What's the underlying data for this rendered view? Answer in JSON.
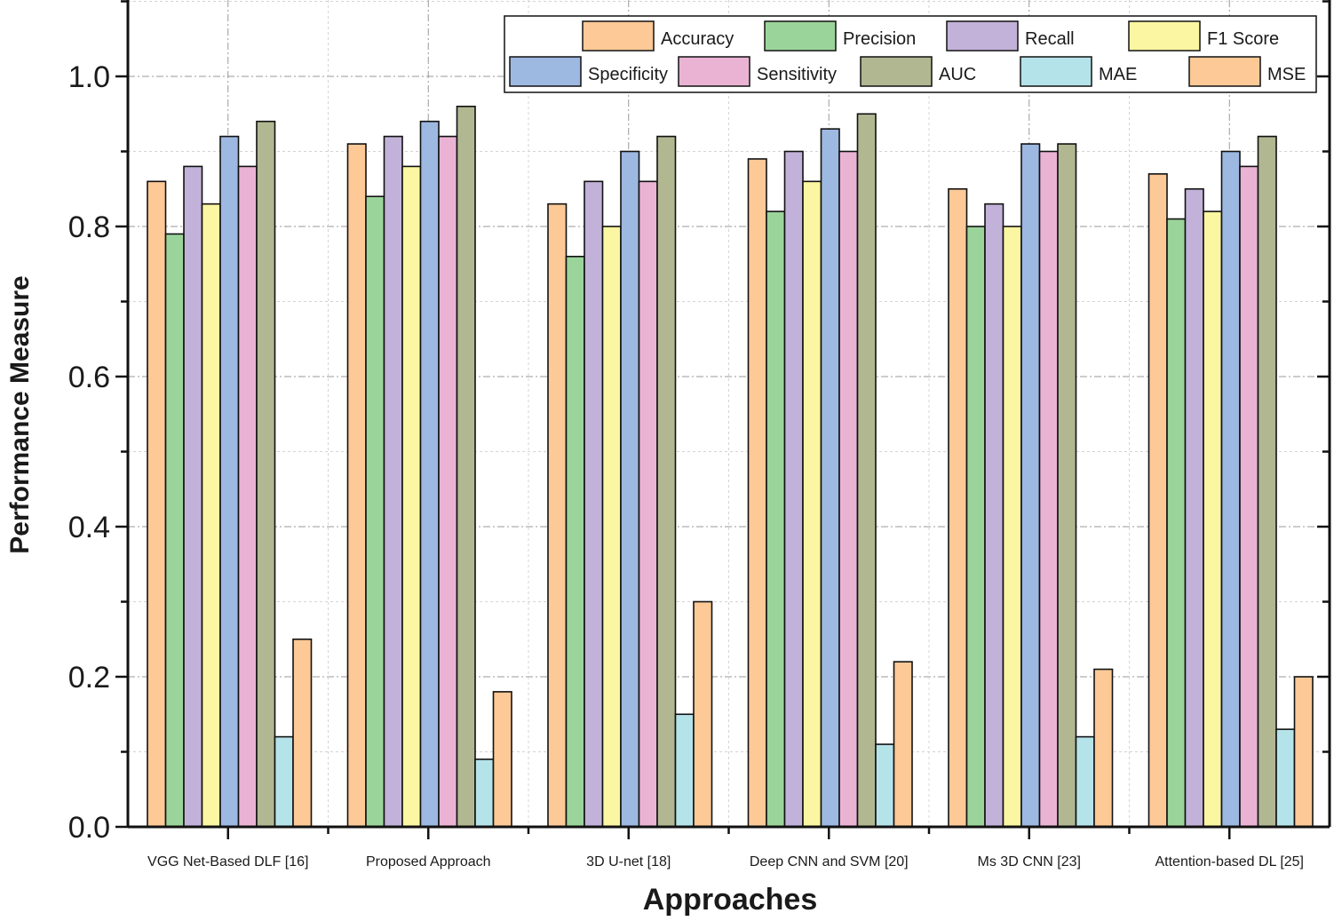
{
  "chart_data": {
    "type": "bar",
    "title": "",
    "xlabel": "Approaches",
    "ylabel": "Performance Measure",
    "ylim": [
      0,
      1.1
    ],
    "yticks": [
      0.0,
      0.2,
      0.4,
      0.6,
      0.8,
      1.0
    ],
    "ytick_labels": [
      "0.0",
      "0.2",
      "0.4",
      "0.6",
      "0.8",
      "1.0"
    ],
    "grid": true,
    "legend_position": "top-right",
    "categories": [
      "VGG Net-Based DLF [16]",
      "Proposed Approach",
      "3D U-net [18]",
      "Deep CNN and SVM [20]",
      "Ms 3D CNN [23]",
      "Attention-based DL [25]"
    ],
    "series": [
      {
        "name": "Accuracy",
        "color": "#FCC997",
        "values": [
          0.86,
          0.91,
          0.83,
          0.89,
          0.85,
          0.87
        ]
      },
      {
        "name": "Precision",
        "color": "#9BD49A",
        "values": [
          0.79,
          0.84,
          0.76,
          0.82,
          0.8,
          0.81
        ]
      },
      {
        "name": "Recall",
        "color": "#C2B2D9",
        "values": [
          0.88,
          0.92,
          0.86,
          0.9,
          0.83,
          0.85
        ]
      },
      {
        "name": "F1 Score",
        "color": "#FBF6A2",
        "values": [
          0.83,
          0.88,
          0.8,
          0.86,
          0.8,
          0.82
        ]
      },
      {
        "name": "Specificity",
        "color": "#9DB8E1",
        "values": [
          0.92,
          0.94,
          0.9,
          0.93,
          0.91,
          0.9
        ]
      },
      {
        "name": "Sensitivity",
        "color": "#EAB3D4",
        "values": [
          0.88,
          0.92,
          0.86,
          0.9,
          0.9,
          0.88
        ]
      },
      {
        "name": "AUC",
        "color": "#B1B791",
        "values": [
          0.94,
          0.96,
          0.92,
          0.95,
          0.91,
          0.92
        ]
      },
      {
        "name": "MAE",
        "color": "#B5E3EA",
        "values": [
          0.12,
          0.09,
          0.15,
          0.11,
          0.12,
          0.13
        ]
      },
      {
        "name": "MSE",
        "color": "#FCC997",
        "values": [
          0.25,
          0.18,
          0.3,
          0.22,
          0.21,
          0.2
        ]
      }
    ]
  }
}
